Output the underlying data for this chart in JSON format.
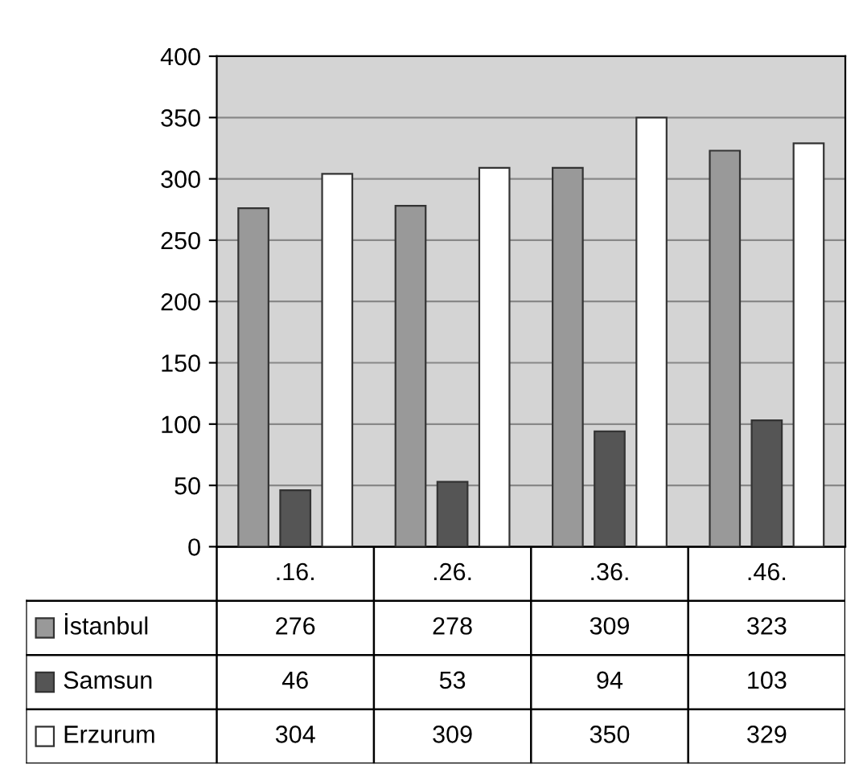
{
  "chart_data": {
    "type": "bar",
    "categories": [
      ".16.",
      ".26.",
      ".36.",
      ".46."
    ],
    "series": [
      {
        "name": "İstanbul",
        "color": "#999999",
        "values": [
          276,
          278,
          309,
          323
        ]
      },
      {
        "name": "Samsun",
        "color": "#555555",
        "values": [
          46,
          53,
          94,
          103
        ]
      },
      {
        "name": "Erzurum",
        "color": "#ffffff",
        "values": [
          304,
          309,
          350,
          329
        ]
      }
    ],
    "ylim": [
      0,
      400
    ],
    "yticks": [
      0,
      50,
      100,
      150,
      200,
      250,
      300,
      350,
      400
    ],
    "grid": "y",
    "legend": "bottom",
    "data_labels": true
  }
}
